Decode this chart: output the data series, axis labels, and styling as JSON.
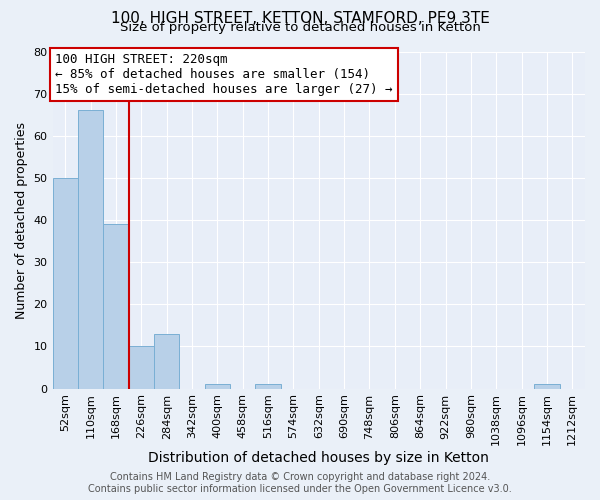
{
  "title": "100, HIGH STREET, KETTON, STAMFORD, PE9 3TE",
  "subtitle": "Size of property relative to detached houses in Ketton",
  "xlabel": "Distribution of detached houses by size in Ketton",
  "ylabel": "Number of detached properties",
  "bin_labels": [
    "52sqm",
    "110sqm",
    "168sqm",
    "226sqm",
    "284sqm",
    "342sqm",
    "400sqm",
    "458sqm",
    "516sqm",
    "574sqm",
    "632sqm",
    "690sqm",
    "748sqm",
    "806sqm",
    "864sqm",
    "922sqm",
    "980sqm",
    "1038sqm",
    "1096sqm",
    "1154sqm",
    "1212sqm"
  ],
  "bar_values": [
    50,
    66,
    39,
    10,
    13,
    0,
    1,
    0,
    1,
    0,
    0,
    0,
    0,
    0,
    0,
    0,
    0,
    0,
    0,
    1,
    0
  ],
  "bar_color": "#b8d0e8",
  "bar_edge_color": "#7aafd4",
  "property_line_color": "#cc0000",
  "annotation_text": "100 HIGH STREET: 220sqm\n← 85% of detached houses are smaller (154)\n15% of semi-detached houses are larger (27) →",
  "annotation_box_color": "#cc0000",
  "ylim": [
    0,
    80
  ],
  "yticks": [
    0,
    10,
    20,
    30,
    40,
    50,
    60,
    70,
    80
  ],
  "background_color": "#eaf0f8",
  "plot_bg_color": "#e8eef8",
  "grid_color": "#ffffff",
  "footer_line1": "Contains HM Land Registry data © Crown copyright and database right 2024.",
  "footer_line2": "Contains public sector information licensed under the Open Government Licence v3.0.",
  "title_fontsize": 11,
  "subtitle_fontsize": 9.5,
  "xlabel_fontsize": 10,
  "ylabel_fontsize": 9,
  "tick_fontsize": 8,
  "annotation_fontsize": 9,
  "footer_fontsize": 7
}
